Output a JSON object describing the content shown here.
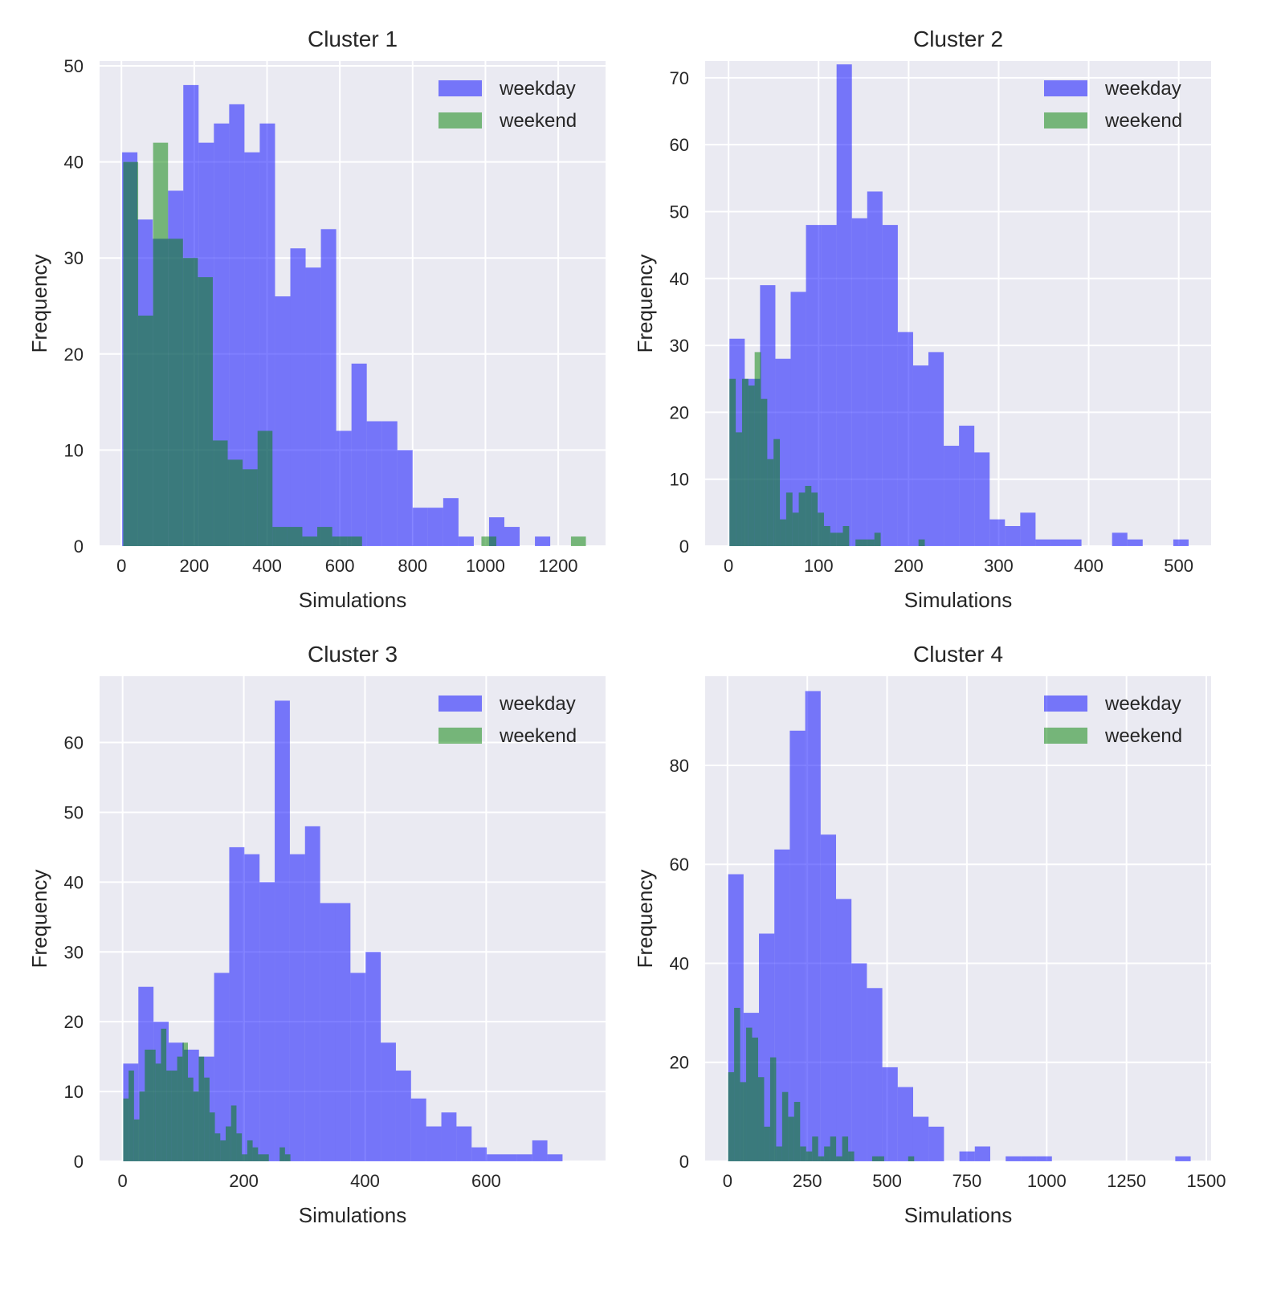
{
  "colors": {
    "weekday": "#0000ff",
    "weekend": "#008000",
    "panel_bg": "#eaeaf2",
    "grid": "#ffffff"
  },
  "chart_data": [
    {
      "type": "bar",
      "title": "Cluster 1",
      "xlabel": "Simulations",
      "ylabel": "Frequency",
      "xlim": [
        -60,
        1330
      ],
      "ylim": [
        0,
        50.5
      ],
      "xticks": [
        0,
        200,
        400,
        600,
        800,
        1000,
        1200
      ],
      "yticks": [
        0,
        10,
        20,
        30,
        40,
        50
      ],
      "legend": [
        "weekday",
        "weekend"
      ],
      "legend_position": "top-right",
      "series": [
        {
          "name": "weekday",
          "bin_start": 2,
          "bin_width": 42,
          "values": [
            41,
            34,
            32,
            37,
            48,
            42,
            44,
            46,
            41,
            44,
            26,
            31,
            29,
            33,
            12,
            19,
            13,
            13,
            10,
            4,
            4,
            5,
            1,
            0,
            3,
            2,
            0,
            1,
            0,
            0
          ]
        },
        {
          "name": "weekend",
          "bin_start": 5,
          "bin_width": 41,
          "values": [
            40,
            24,
            42,
            32,
            30,
            28,
            11,
            9,
            8,
            12,
            2,
            2,
            1,
            2,
            1,
            1,
            0,
            0,
            0,
            0,
            0,
            0,
            0,
            0,
            1,
            0,
            0,
            0,
            0,
            0,
            1
          ]
        }
      ]
    },
    {
      "type": "bar",
      "title": "Cluster 2",
      "xlabel": "Simulations",
      "ylabel": "Frequency",
      "xlim": [
        -26,
        536
      ],
      "ylim": [
        0,
        72.5
      ],
      "xticks": [
        0,
        100,
        200,
        300,
        400,
        500
      ],
      "yticks": [
        0,
        10,
        20,
        30,
        40,
        50,
        60,
        70
      ],
      "legend": [
        "weekday",
        "weekend"
      ],
      "legend_position": "top-right",
      "series": [
        {
          "name": "weekday",
          "bin_start": 1,
          "bin_width": 17,
          "values": [
            31,
            25,
            39,
            28,
            38,
            48,
            48,
            72,
            49,
            53,
            48,
            32,
            27,
            29,
            15,
            18,
            14,
            4,
            3,
            5,
            1,
            1,
            1,
            0,
            0,
            2,
            1,
            0,
            0,
            1
          ]
        },
        {
          "name": "weekend",
          "bin_start": 1,
          "bin_width": 7,
          "values": [
            25,
            17,
            25,
            24,
            29,
            22,
            13,
            16,
            4,
            8,
            5,
            8,
            9,
            8,
            5,
            3,
            2,
            2,
            3,
            0,
            1,
            1,
            1,
            2,
            0,
            0,
            0,
            0,
            0,
            0,
            1
          ]
        }
      ]
    },
    {
      "type": "bar",
      "title": "Cluster 3",
      "xlabel": "Simulations",
      "ylabel": "Frequency",
      "xlim": [
        -38,
        797
      ],
      "ylim": [
        0,
        69.5
      ],
      "xticks": [
        0,
        200,
        400,
        600
      ],
      "yticks": [
        0,
        10,
        20,
        30,
        40,
        50,
        60
      ],
      "legend": [
        "weekday",
        "weekend"
      ],
      "legend_position": "top-right",
      "series": [
        {
          "name": "weekday",
          "bin_start": 1,
          "bin_width": 25,
          "values": [
            14,
            25,
            20,
            17,
            16,
            15,
            27,
            45,
            44,
            40,
            66,
            44,
            48,
            37,
            37,
            27,
            30,
            17,
            13,
            9,
            5,
            7,
            5,
            2,
            1,
            1,
            1,
            3,
            1
          ]
        },
        {
          "name": "weekend",
          "bin_start": 1,
          "bin_width": 8.9,
          "values": [
            9,
            13,
            6,
            10,
            16,
            16,
            14,
            19,
            13,
            13,
            15,
            17,
            12,
            10,
            15,
            12,
            7,
            4,
            3,
            5,
            8,
            4,
            1,
            3,
            2,
            1,
            1,
            0,
            0,
            2,
            1
          ]
        }
      ]
    },
    {
      "type": "bar",
      "title": "Cluster 4",
      "xlabel": "Simulations",
      "ylabel": "Frequency",
      "xlim": [
        -70,
        1515
      ],
      "ylim": [
        0,
        98
      ],
      "xticks": [
        0,
        250,
        500,
        750,
        1000,
        1250,
        1500
      ],
      "yticks": [
        0,
        20,
        40,
        60,
        80
      ],
      "legend": [
        "weekday",
        "weekend"
      ],
      "legend_position": "top-right",
      "series": [
        {
          "name": "weekday",
          "bin_start": 2,
          "bin_width": 48.3,
          "values": [
            58,
            30,
            46,
            63,
            87,
            95,
            66,
            53,
            40,
            35,
            19,
            15,
            9,
            7,
            0,
            2,
            3,
            0,
            1,
            1,
            1,
            0,
            0,
            0,
            0,
            0,
            0,
            0,
            0,
            1
          ]
        },
        {
          "name": "weekend",
          "bin_start": 2,
          "bin_width": 18.8,
          "values": [
            18,
            31,
            16,
            27,
            25,
            17,
            7,
            21,
            3,
            14,
            9,
            12,
            3,
            2,
            5,
            1,
            3,
            5,
            1,
            5,
            2,
            0,
            0,
            0,
            1,
            1,
            0,
            0,
            0,
            0,
            1,
            0,
            0,
            0,
            0,
            0,
            0,
            0,
            0,
            0,
            0,
            0,
            0,
            0,
            0,
            0,
            0,
            0,
            0,
            0,
            0,
            0,
            0,
            0,
            0,
            0,
            0,
            0,
            0,
            0
          ]
        }
      ]
    }
  ]
}
